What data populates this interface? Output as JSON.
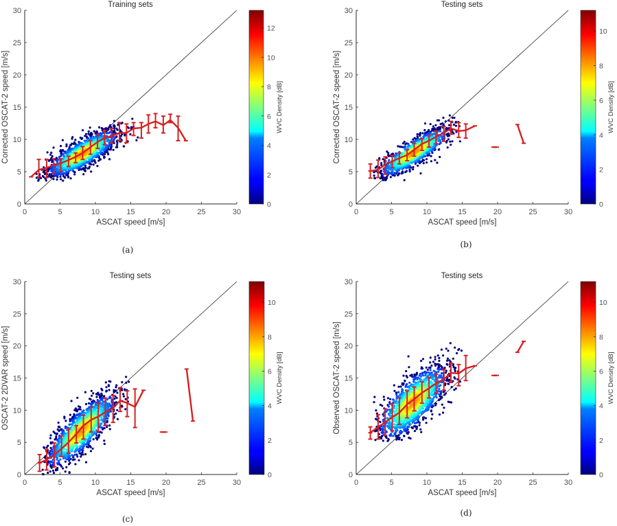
{
  "chart_data": [
    {
      "id": "a",
      "type": "scatter",
      "caption": "(a)",
      "title": "Training sets",
      "xlabel": "ASCAT speed [m/s]",
      "ylabel": "Corrected OSCAT-2 speed [m/s]",
      "xlim": [
        0,
        30
      ],
      "ylim": [
        0,
        30
      ],
      "xticks": [
        "0",
        "5",
        "10",
        "15",
        "20",
        "25",
        "30"
      ],
      "yticks": [
        "0",
        "5",
        "10",
        "15",
        "20",
        "25",
        "30"
      ],
      "reference_line": {
        "label": "y = x",
        "from": [
          0,
          0
        ],
        "to": [
          30,
          30
        ]
      },
      "colorbar": {
        "label": "WVC Density [dB]",
        "min": 0,
        "max": 13.2,
        "ticks": [
          "0",
          "2",
          "4",
          "6",
          "8",
          "10",
          "12"
        ],
        "colormap": "jet"
      },
      "scatter_cloud": {
        "x_mean": 8.2,
        "y_mean": 7.8,
        "x_sd": 2.6,
        "y_sd": 1.9,
        "corr": 0.8,
        "x_range": [
          1.5,
          16.5
        ],
        "y_range": [
          3.6,
          14.0
        ],
        "n": 1400
      },
      "mean_line": {
        "color": "#d62020",
        "points": [
          {
            "x": 0.9,
            "y": 4.2,
            "lo": 4.2,
            "hi": 4.2
          },
          {
            "x": 2.0,
            "y": 5.3,
            "lo": 4.2,
            "hi": 6.9
          },
          {
            "x": 3.1,
            "y": 5.6,
            "lo": 4.1,
            "hi": 6.9
          },
          {
            "x": 4.1,
            "y": 6.0,
            "lo": 4.7,
            "hi": 7.0
          },
          {
            "x": 5.1,
            "y": 6.3,
            "lo": 5.0,
            "hi": 7.0
          },
          {
            "x": 6.2,
            "y": 6.8,
            "lo": 5.8,
            "hi": 7.4
          },
          {
            "x": 7.2,
            "y": 7.3,
            "lo": 6.4,
            "hi": 7.9
          },
          {
            "x": 8.2,
            "y": 7.9,
            "lo": 6.9,
            "hi": 8.9
          },
          {
            "x": 9.3,
            "y": 8.8,
            "lo": 7.7,
            "hi": 9.8
          },
          {
            "x": 10.3,
            "y": 9.6,
            "lo": 8.6,
            "hi": 10.8
          },
          {
            "x": 11.3,
            "y": 10.2,
            "lo": 9.2,
            "hi": 11.4
          },
          {
            "x": 12.3,
            "y": 10.5,
            "lo": 9.4,
            "hi": 11.7
          },
          {
            "x": 13.4,
            "y": 11.0,
            "lo": 9.8,
            "hi": 12.6
          },
          {
            "x": 14.4,
            "y": 11.0,
            "lo": 9.5,
            "hi": 12.4
          },
          {
            "x": 15.4,
            "y": 11.7,
            "lo": 10.6,
            "hi": 12.6
          },
          {
            "x": 16.5,
            "y": 11.8,
            "lo": 10.2,
            "hi": 12.6
          },
          {
            "x": 17.5,
            "y": 12.4,
            "lo": 11.0,
            "hi": 13.8
          },
          {
            "x": 18.5,
            "y": 12.8,
            "lo": 11.8,
            "hi": 14.0
          },
          {
            "x": 19.6,
            "y": 12.2,
            "lo": 11.0,
            "hi": 13.6
          },
          {
            "x": 20.6,
            "y": 13.0,
            "lo": 12.6,
            "hi": 13.9
          },
          {
            "x": 21.7,
            "y": 11.8,
            "lo": 9.8,
            "hi": 13.6
          },
          {
            "x": 22.8,
            "y": 9.8,
            "lo": 9.8,
            "hi": 9.8
          }
        ],
        "isolated_segments": []
      }
    },
    {
      "id": "b",
      "type": "scatter",
      "caption": "(b)",
      "title": "Testing sets",
      "xlabel": "ASCAT speed [m/s]",
      "ylabel": "Corrected OSCAT-2 speed [m/s]",
      "xlim": [
        0,
        30
      ],
      "ylim": [
        0,
        30
      ],
      "xticks": [
        "0",
        "5",
        "10",
        "15",
        "20",
        "25",
        "30"
      ],
      "yticks": [
        "0",
        "5",
        "10",
        "15",
        "20",
        "25",
        "30"
      ],
      "reference_line": {
        "label": "y = x",
        "from": [
          0,
          0
        ],
        "to": [
          30,
          30
        ]
      },
      "colorbar": {
        "label": "WVC Density [dB]",
        "min": 0,
        "max": 11.2,
        "ticks": [
          "0",
          "2",
          "4",
          "6",
          "8",
          "10"
        ],
        "colormap": "jet"
      },
      "scatter_cloud": {
        "x_mean": 8.2,
        "y_mean": 8.0,
        "x_sd": 2.6,
        "y_sd": 2.0,
        "corr": 0.85,
        "x_range": [
          2.0,
          15.0
        ],
        "y_range": [
          3.6,
          13.8
        ],
        "n": 1100
      },
      "mean_line": {
        "color": "#d62020",
        "points": [
          {
            "x": 2.0,
            "y": 5.1,
            "lo": 4.0,
            "hi": 6.2
          },
          {
            "x": 3.1,
            "y": 5.3,
            "lo": 4.1,
            "hi": 6.8
          },
          {
            "x": 4.1,
            "y": 6.1,
            "lo": 4.6,
            "hi": 7.3
          },
          {
            "x": 5.1,
            "y": 6.6,
            "lo": 5.6,
            "hi": 7.5
          },
          {
            "x": 6.1,
            "y": 7.1,
            "lo": 6.2,
            "hi": 7.9
          },
          {
            "x": 7.2,
            "y": 7.6,
            "lo": 6.7,
            "hi": 8.4
          },
          {
            "x": 8.2,
            "y": 8.4,
            "lo": 7.4,
            "hi": 9.4
          },
          {
            "x": 9.3,
            "y": 9.3,
            "lo": 8.3,
            "hi": 10.1
          },
          {
            "x": 10.3,
            "y": 9.8,
            "lo": 8.8,
            "hi": 10.6
          },
          {
            "x": 11.3,
            "y": 10.4,
            "lo": 9.3,
            "hi": 11.3
          },
          {
            "x": 12.4,
            "y": 11.0,
            "lo": 9.7,
            "hi": 12.0
          },
          {
            "x": 13.4,
            "y": 11.7,
            "lo": 10.8,
            "hi": 12.8
          },
          {
            "x": 14.5,
            "y": 11.3,
            "lo": 10.3,
            "hi": 12.6
          },
          {
            "x": 15.5,
            "y": 11.4,
            "lo": 10.2,
            "hi": 12.4
          },
          {
            "x": 16.8,
            "y": 12.1,
            "lo": 12.1,
            "hi": 12.1
          }
        ],
        "isolated_segments": [
          [
            {
              "x": 19.4,
              "y": 8.8
            },
            {
              "x": 19.9,
              "y": 8.8
            }
          ],
          [
            {
              "x": 22.8,
              "y": 12.3
            },
            {
              "x": 23.7,
              "y": 9.4
            }
          ]
        ]
      }
    },
    {
      "id": "c",
      "type": "scatter",
      "caption": "(c)",
      "title": "Testing sets",
      "xlabel": "ASCAT speed [m/s]",
      "ylabel": "OSCAT-2 2DVAR speed [m/s]",
      "xlim": [
        0,
        30
      ],
      "ylim": [
        0,
        30
      ],
      "xticks": [
        "0",
        "5",
        "10",
        "15",
        "20",
        "25",
        "30"
      ],
      "yticks": [
        "0",
        "5",
        "10",
        "15",
        "20",
        "25",
        "30"
      ],
      "reference_line": {
        "label": "y = x",
        "from": [
          0,
          0
        ],
        "to": [
          30,
          30
        ]
      },
      "colorbar": {
        "label": "WVC Density [dB]",
        "min": 0,
        "max": 11.2,
        "ticks": [
          "0",
          "2",
          "4",
          "6",
          "8",
          "10"
        ],
        "colormap": "jet"
      },
      "scatter_cloud": {
        "x_mean": 8.0,
        "y_mean": 6.8,
        "x_sd": 2.6,
        "y_sd": 3.0,
        "corr": 0.82,
        "x_range": [
          2.5,
          15.0
        ],
        "y_range": [
          0.0,
          15.2
        ],
        "n": 1400
      },
      "mean_line": {
        "color": "#d62020",
        "points": [
          {
            "x": 2.1,
            "y": 1.8,
            "lo": 0.5,
            "hi": 3.1
          },
          {
            "x": 3.1,
            "y": 2.3,
            "lo": 0.7,
            "hi": 3.9
          },
          {
            "x": 4.2,
            "y": 3.1,
            "lo": 1.2,
            "hi": 4.9
          },
          {
            "x": 5.2,
            "y": 4.0,
            "lo": 2.8,
            "hi": 6.0
          },
          {
            "x": 6.2,
            "y": 5.0,
            "lo": 3.3,
            "hi": 7.1
          },
          {
            "x": 7.3,
            "y": 6.3,
            "lo": 4.9,
            "hi": 7.6
          },
          {
            "x": 8.3,
            "y": 7.6,
            "lo": 5.5,
            "hi": 9.2
          },
          {
            "x": 9.4,
            "y": 8.5,
            "lo": 6.6,
            "hi": 10.4
          },
          {
            "x": 10.4,
            "y": 9.0,
            "lo": 6.7,
            "hi": 11.1
          },
          {
            "x": 11.4,
            "y": 9.7,
            "lo": 7.6,
            "hi": 11.9
          },
          {
            "x": 12.5,
            "y": 10.3,
            "lo": 8.1,
            "hi": 12.3
          },
          {
            "x": 13.5,
            "y": 11.5,
            "lo": 9.8,
            "hi": 13.5
          },
          {
            "x": 14.5,
            "y": 11.1,
            "lo": 9.0,
            "hi": 13.0
          },
          {
            "x": 15.6,
            "y": 10.5,
            "lo": 7.3,
            "hi": 13.3
          },
          {
            "x": 16.8,
            "y": 13.1,
            "lo": 13.1,
            "hi": 13.1
          }
        ],
        "isolated_segments": [
          [
            {
              "x": 19.4,
              "y": 6.6
            },
            {
              "x": 19.9,
              "y": 6.6
            }
          ],
          [
            {
              "x": 22.9,
              "y": 16.4
            },
            {
              "x": 23.8,
              "y": 8.3
            }
          ]
        ]
      }
    },
    {
      "id": "d",
      "type": "scatter",
      "caption": "(d)",
      "title": "Testing sets",
      "xlabel": "ASCAT speed [m/s]",
      "ylabel": "Observed OSCAT-2 speed [m/s]",
      "xlim": [
        0,
        30
      ],
      "ylim": [
        0,
        30
      ],
      "xticks": [
        "0",
        "5",
        "10",
        "15",
        "20",
        "25",
        "30"
      ],
      "yticks": [
        "0",
        "5",
        "10",
        "15",
        "20",
        "25",
        "30"
      ],
      "reference_line": {
        "label": "y = x",
        "from": [
          0,
          0
        ],
        "to": [
          30,
          30
        ]
      },
      "colorbar": {
        "label": "WVC Density [dB]",
        "min": 0,
        "max": 11.2,
        "ticks": [
          "0",
          "2",
          "4",
          "6",
          "8",
          "10"
        ],
        "colormap": "jet"
      },
      "scatter_cloud": {
        "x_mean": 8.0,
        "y_mean": 11.2,
        "x_sd": 2.6,
        "y_sd": 3.0,
        "corr": 0.72,
        "x_range": [
          2.5,
          15.5
        ],
        "y_range": [
          5.2,
          21.0
        ],
        "n": 1400
      },
      "mean_line": {
        "color": "#d62020",
        "points": [
          {
            "x": 2.0,
            "y": 6.5,
            "lo": 5.5,
            "hi": 7.4
          },
          {
            "x": 3.1,
            "y": 7.4,
            "lo": 5.5,
            "hi": 9.3
          },
          {
            "x": 4.1,
            "y": 8.1,
            "lo": 6.1,
            "hi": 10.2
          },
          {
            "x": 5.1,
            "y": 8.9,
            "lo": 6.8,
            "hi": 11.0
          },
          {
            "x": 6.1,
            "y": 9.6,
            "lo": 7.8,
            "hi": 11.9
          },
          {
            "x": 7.2,
            "y": 10.9,
            "lo": 8.8,
            "hi": 13.0
          },
          {
            "x": 8.2,
            "y": 11.7,
            "lo": 9.9,
            "hi": 13.6
          },
          {
            "x": 9.3,
            "y": 12.7,
            "lo": 11.1,
            "hi": 14.4
          },
          {
            "x": 10.3,
            "y": 13.4,
            "lo": 11.9,
            "hi": 15.1
          },
          {
            "x": 11.3,
            "y": 14.2,
            "lo": 12.6,
            "hi": 15.6
          },
          {
            "x": 12.4,
            "y": 14.8,
            "lo": 13.1,
            "hi": 16.3
          },
          {
            "x": 13.4,
            "y": 15.8,
            "lo": 14.3,
            "hi": 17.3
          },
          {
            "x": 14.5,
            "y": 15.7,
            "lo": 13.8,
            "hi": 17.1
          },
          {
            "x": 15.5,
            "y": 16.5,
            "lo": 14.6,
            "hi": 18.5
          },
          {
            "x": 16.8,
            "y": 16.9,
            "lo": 16.9,
            "hi": 16.9
          }
        ],
        "isolated_segments": [
          [
            {
              "x": 19.4,
              "y": 15.4
            },
            {
              "x": 19.9,
              "y": 15.4
            }
          ],
          [
            {
              "x": 22.8,
              "y": 19.0
            },
            {
              "x": 23.7,
              "y": 20.7
            }
          ]
        ]
      }
    }
  ]
}
